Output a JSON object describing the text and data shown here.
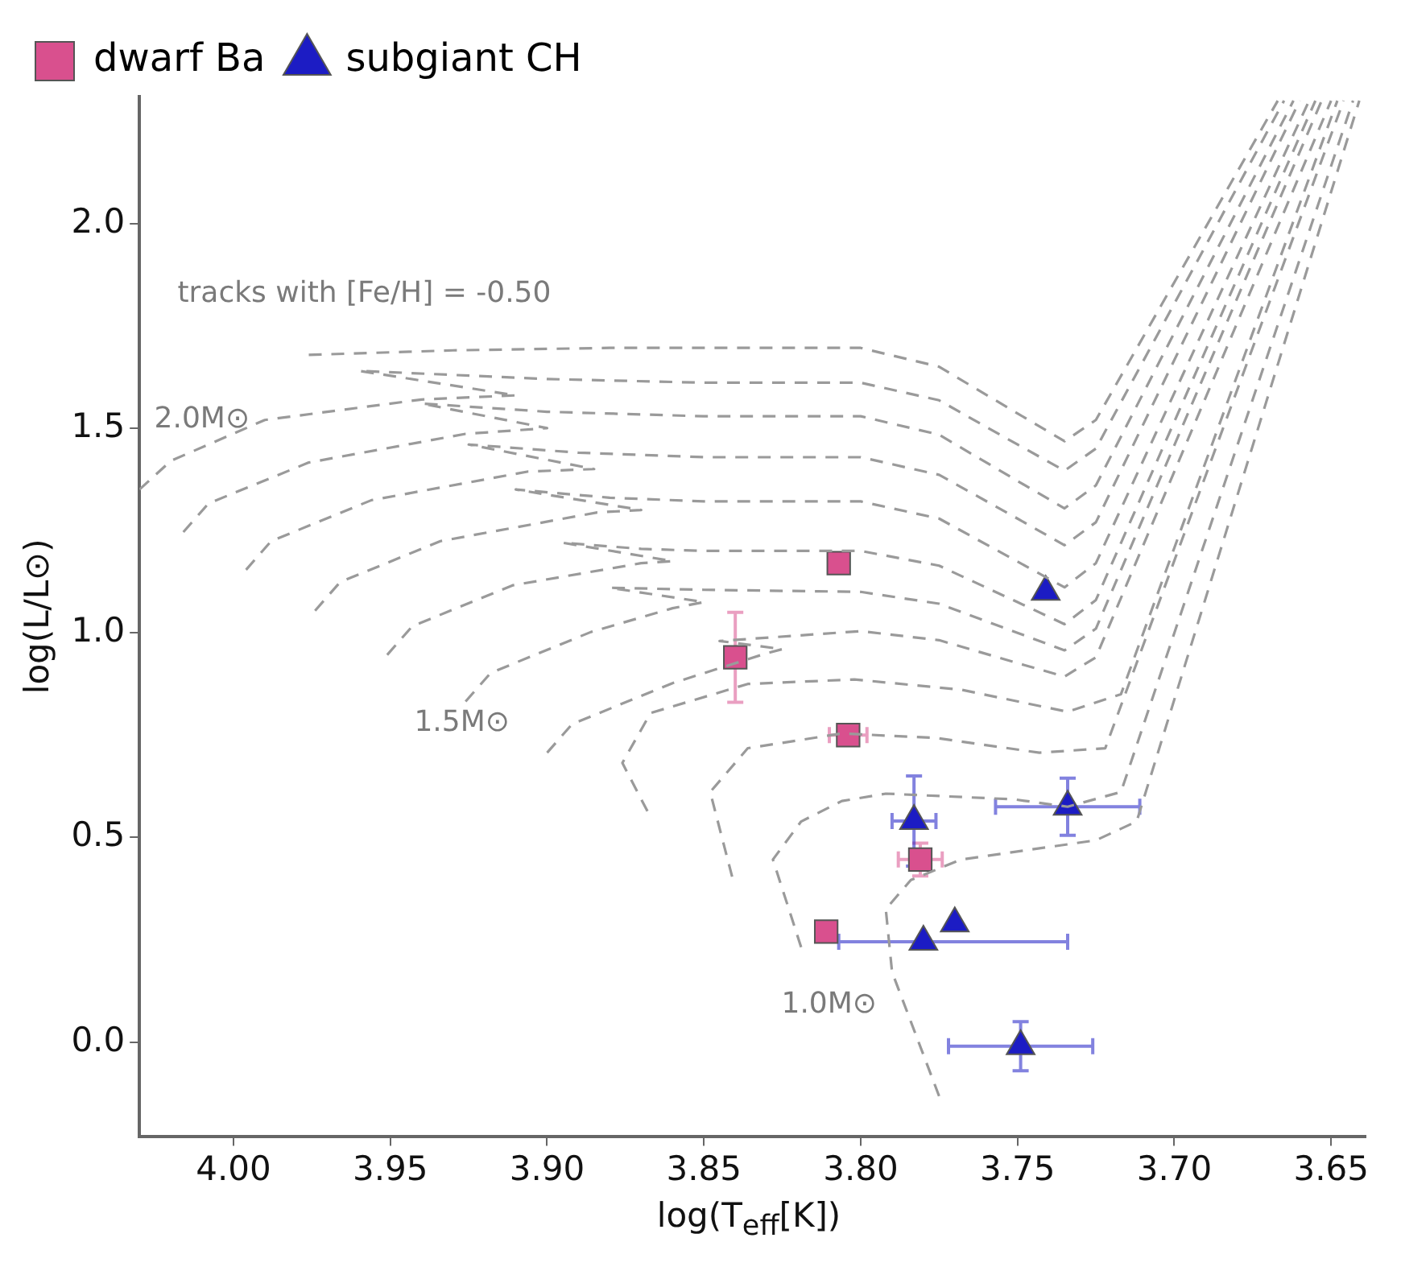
{
  "chart_data": {
    "type": "scatter",
    "xlabel": "log(T$_{eff}$[K])",
    "ylabel": "log(L/L⊙)",
    "xlim": [
      4.03,
      3.639
    ],
    "ylim": [
      -0.23,
      2.31
    ],
    "xticks": [
      {
        "value": 4.0,
        "label": "4.00"
      },
      3.95,
      {
        "value": 3.9,
        "label": "3.90"
      },
      3.85,
      {
        "value": 3.8,
        "label": "3.80"
      },
      3.75,
      {
        "value": 3.7,
        "label": "3.70"
      },
      3.65
    ],
    "yticks": [
      {
        "value": 0,
        "label": "0.0"
      },
      0.5,
      {
        "value": 1,
        "label": "1.0"
      },
      1.5,
      {
        "value": 2,
        "label": "2.0"
      }
    ],
    "legend": "top left",
    "annotations": [
      "tracks with [Fe/H] = -0.50",
      "2.0M⊙",
      "1.5M⊙",
      "1.0M⊙"
    ],
    "series": [
      {
        "type": "line",
        "color": "#9a9a9a",
        "line_style": "dashed",
        "marker": "none",
        "x": [
          3.976,
          3.93,
          3.88,
          3.85,
          3.8,
          3.775,
          3.75,
          3.735,
          3.725,
          3.667
        ],
        "values": [
          1.679,
          1.69,
          1.696,
          1.696,
          1.696,
          1.65,
          1.536,
          1.468,
          1.52,
          2.3
        ]
      },
      {
        "type": "line",
        "color": "#9a9a9a",
        "line_style": "dashed",
        "marker": "none",
        "x": [
          4.03,
          4.02,
          3.99,
          3.94,
          3.91,
          3.96,
          3.9,
          3.85,
          3.8,
          3.775,
          3.75,
          3.735,
          3.725,
          3.665
        ],
        "values": [
          1.35,
          1.42,
          1.52,
          1.57,
          1.58,
          1.64,
          1.62,
          1.611,
          1.611,
          1.568,
          1.46,
          1.396,
          1.45,
          2.3
        ]
      },
      {
        "type": "line",
        "color": "#9a9a9a",
        "line_style": "dashed",
        "marker": "none",
        "x": [
          4.016,
          4.008,
          3.976,
          3.926,
          3.9,
          3.94,
          3.9,
          3.85,
          3.8,
          3.775,
          3.75,
          3.735,
          3.725,
          3.662
        ],
        "values": [
          1.246,
          1.316,
          1.416,
          1.486,
          1.5,
          1.56,
          1.54,
          1.529,
          1.529,
          1.484,
          1.371,
          1.304,
          1.36,
          2.3
        ]
      },
      {
        "type": "line",
        "color": "#9a9a9a",
        "line_style": "dashed",
        "marker": "none",
        "x": [
          3.996,
          3.988,
          3.956,
          3.906,
          3.885,
          3.925,
          3.89,
          3.85,
          3.8,
          3.775,
          3.75,
          3.735,
          3.725,
          3.66
        ],
        "values": [
          1.154,
          1.224,
          1.324,
          1.394,
          1.4,
          1.46,
          1.44,
          1.429,
          1.429,
          1.386,
          1.279,
          1.214,
          1.27,
          2.3
        ]
      },
      {
        "type": "line",
        "color": "#9a9a9a",
        "line_style": "dashed",
        "marker": "none",
        "x": [
          3.974,
          3.966,
          3.934,
          3.884,
          3.87,
          3.91,
          3.88,
          3.85,
          3.8,
          3.775,
          3.75,
          3.735,
          3.725,
          3.657
        ],
        "values": [
          1.054,
          1.124,
          1.224,
          1.294,
          1.3,
          1.35,
          1.33,
          1.321,
          1.321,
          1.279,
          1.174,
          1.111,
          1.17,
          2.3
        ]
      },
      {
        "type": "line",
        "color": "#9a9a9a",
        "line_style": "dashed",
        "marker": "none",
        "x": [
          3.951,
          3.943,
          3.911,
          3.87,
          3.86,
          3.895,
          3.87,
          3.85,
          3.8,
          3.775,
          3.75,
          3.735,
          3.725,
          3.655
        ],
        "values": [
          0.946,
          1.016,
          1.116,
          1.17,
          1.175,
          1.22,
          1.205,
          1.2,
          1.2,
          1.164,
          1.075,
          1.021,
          1.08,
          2.3
        ]
      },
      {
        "type": "line",
        "color": "#9a9a9a",
        "line_style": "dashed",
        "marker": "none",
        "x": [
          3.926,
          3.918,
          3.886,
          3.86,
          3.85,
          3.88,
          3.85,
          3.8,
          3.775,
          3.75,
          3.735,
          3.725,
          3.653
        ],
        "values": [
          0.832,
          0.902,
          1.002,
          1.06,
          1.075,
          1.11,
          1.105,
          1.1,
          1.071,
          1.0,
          0.957,
          1.01,
          2.3
        ]
      },
      {
        "type": "line",
        "color": "#9a9a9a",
        "line_style": "dashed",
        "marker": "none",
        "x": [
          3.9,
          3.892,
          3.86,
          3.83,
          3.825,
          3.845,
          3.8,
          3.775,
          3.75,
          3.735,
          3.725,
          3.65
        ],
        "values": [
          0.707,
          0.777,
          0.877,
          0.95,
          0.96,
          0.98,
          1.004,
          0.982,
          0.926,
          0.893,
          0.94,
          2.3
        ]
      },
      {
        "type": "line",
        "color": "#9a9a9a",
        "line_style": "dashed",
        "marker": "none",
        "x": [
          3.868,
          3.876,
          3.867,
          3.836,
          3.802,
          3.768,
          3.734,
          3.717,
          3.648
        ],
        "values": [
          0.564,
          0.682,
          0.804,
          0.875,
          0.886,
          0.861,
          0.807,
          0.85,
          2.3
        ]
      },
      {
        "type": "line",
        "color": "#9a9a9a",
        "line_style": "dashed",
        "marker": "none",
        "x": [
          3.841,
          3.848,
          3.836,
          3.806,
          3.776,
          3.743,
          3.722,
          3.646
        ],
        "values": [
          0.404,
          0.611,
          0.718,
          0.754,
          0.743,
          0.707,
          0.718,
          2.3
        ]
      },
      {
        "type": "line",
        "color": "#9a9a9a",
        "line_style": "dashed",
        "marker": "none",
        "x": [
          3.819,
          3.828,
          3.819,
          3.806,
          3.792,
          3.751,
          3.734,
          3.717,
          3.643
        ],
        "values": [
          0.232,
          0.446,
          0.539,
          0.589,
          0.607,
          0.593,
          0.575,
          0.611,
          2.3
        ]
      },
      {
        "type": "line",
        "color": "#9a9a9a",
        "line_style": "dashed",
        "marker": "none",
        "x": [
          3.775,
          3.79,
          3.792,
          3.784,
          3.768,
          3.725,
          3.712,
          3.641
        ],
        "values": [
          -0.132,
          0.171,
          0.325,
          0.396,
          0.446,
          0.493,
          0.539,
          2.3
        ]
      },
      {
        "name": "dwarf Ba",
        "type": "scatter",
        "marker": "square",
        "color": "#d9508e",
        "x": [
          3.807,
          3.84,
          3.804,
          3.781,
          3.811
        ],
        "values": [
          1.17,
          0.94,
          0.75,
          0.446,
          0.27
        ],
        "errors": [
          null,
          0.11,
          null,
          0.04,
          null
        ],
        "xerrors": [
          null,
          null,
          0.006,
          0.007,
          null
        ]
      },
      {
        "name": "subgiant CH",
        "type": "scatter",
        "marker": "triangle",
        "color": "#1c1cc4",
        "x": [
          3.741,
          3.783,
          3.734,
          3.77,
          3.78,
          3.749
        ],
        "values": [
          1.1,
          0.54,
          0.575,
          0.29,
          0.245,
          -0.01
        ],
        "errors": [
          null,
          0.11,
          0.07,
          null,
          null,
          0.06
        ],
        "xerrors": [
          null,
          0.007,
          0.023,
          null,
          [
            3.734,
            3.807
          ],
          0.023
        ]
      }
    ]
  }
}
